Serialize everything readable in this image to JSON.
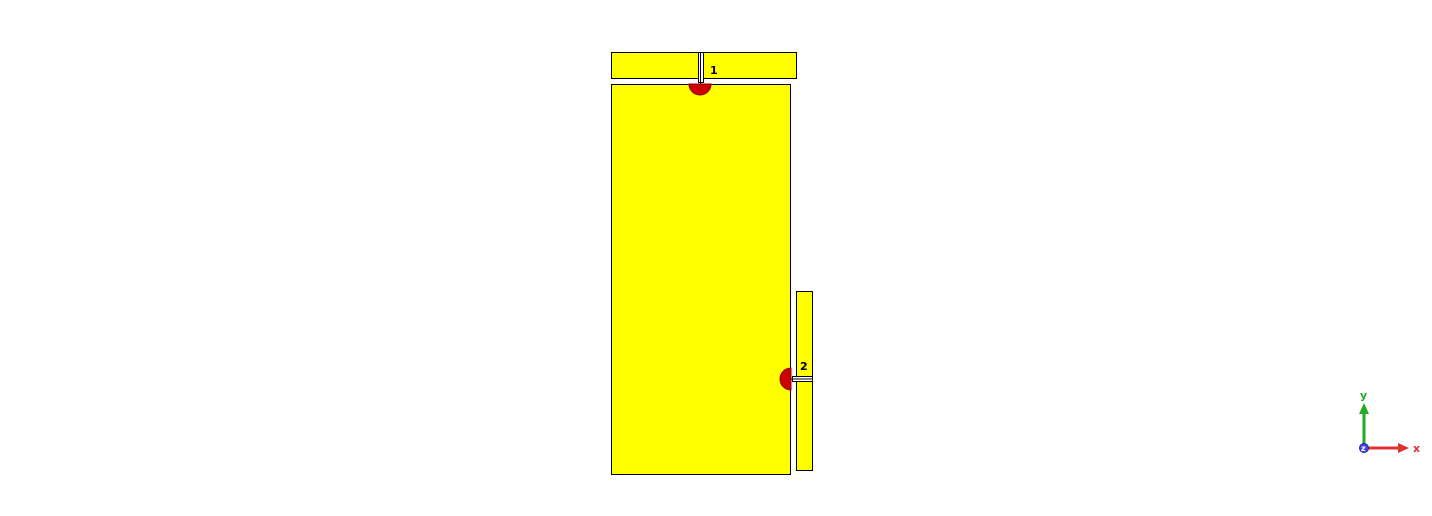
{
  "colors": {
    "background": "#ffffff",
    "metal": "#ffff00",
    "outline": "#000000",
    "port_marker": "#cc0000",
    "axis_x": "#e03030",
    "axis_y": "#22aa22",
    "axis_z": "#4444dd"
  },
  "ports": [
    {
      "label": "1"
    },
    {
      "label": "2"
    }
  ],
  "axes": {
    "x_label": "x",
    "y_label": "y",
    "z_label": "z"
  }
}
